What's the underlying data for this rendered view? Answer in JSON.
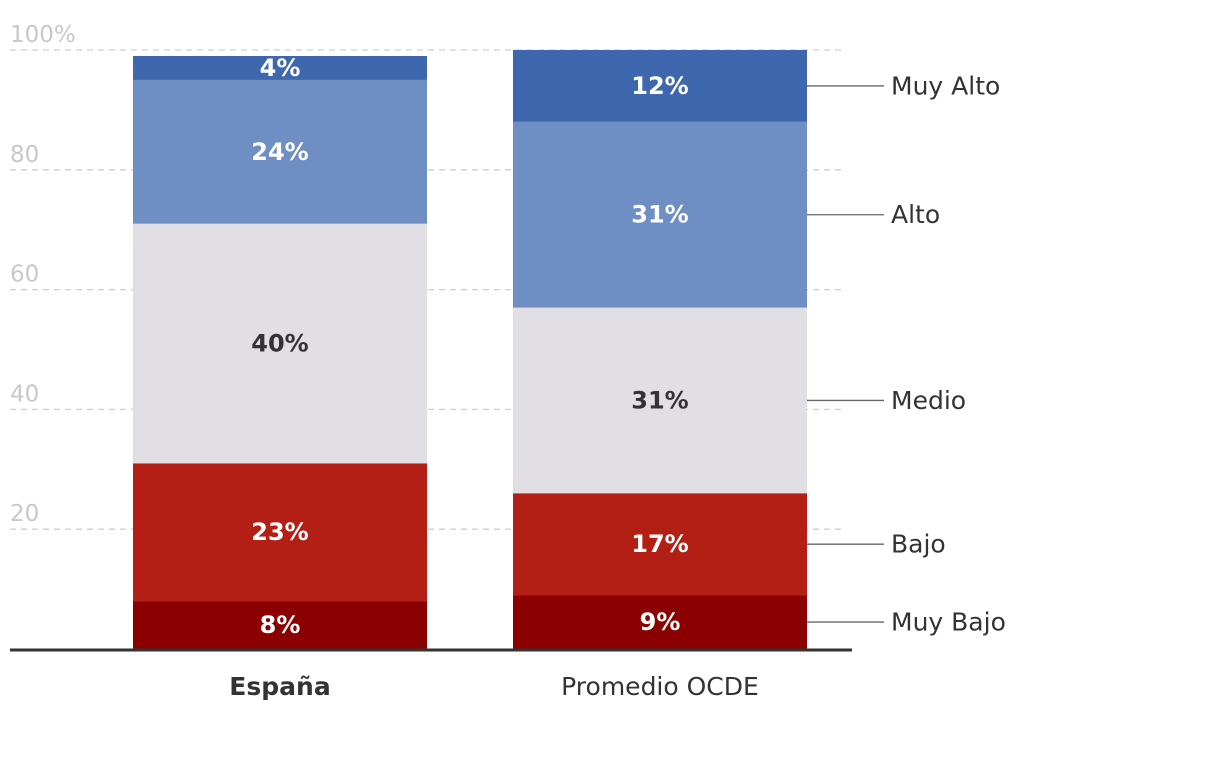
{
  "chart_data": {
    "type": "bar",
    "stacked": true,
    "categories": [
      "España",
      "Promedio OCDE"
    ],
    "category_bold": [
      true,
      false
    ],
    "ylim": [
      0,
      100
    ],
    "yticks": [
      20,
      40,
      60,
      80,
      100
    ],
    "ytick_labels": [
      "20",
      "40",
      "60",
      "80",
      "100%"
    ],
    "grid": true,
    "legend_placement": "right",
    "series": [
      {
        "name": "Muy Bajo",
        "values": [
          8,
          9
        ],
        "labels": [
          "8%",
          "9%"
        ],
        "color": "#8b0000",
        "label_color": "#ffffff"
      },
      {
        "name": "Bajo",
        "values": [
          23,
          17
        ],
        "labels": [
          "23%",
          "17%"
        ],
        "color": "#b31f14",
        "label_color": "#ffffff"
      },
      {
        "name": "Medio",
        "values": [
          40,
          31
        ],
        "labels": [
          "40%",
          "31%"
        ],
        "color": "#e1dfe4",
        "label_color": "#333333"
      },
      {
        "name": "Alto",
        "values": [
          24,
          31
        ],
        "labels": [
          "24%",
          "31%"
        ],
        "color": "#6f8ec4",
        "label_color": "#ffffff"
      },
      {
        "name": "Muy Alto",
        "values": [
          4,
          12
        ],
        "labels": [
          "4%",
          "12%"
        ],
        "color": "#3e67ad",
        "label_color": "#ffffff"
      }
    ]
  }
}
